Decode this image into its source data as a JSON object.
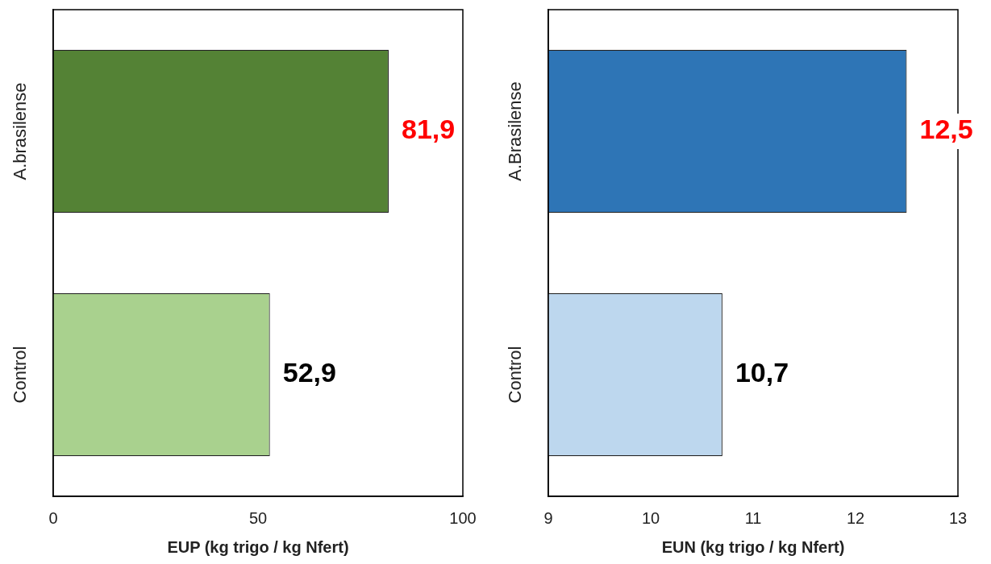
{
  "chart_data": [
    {
      "type": "bar",
      "orientation": "horizontal",
      "categories": [
        "A.brasilense",
        "Control"
      ],
      "values": [
        81.9,
        52.9
      ],
      "colors": [
        "#548235",
        "#a9d18e"
      ],
      "value_labels": [
        "81,9",
        "52,9"
      ],
      "xlabel": "EUP (kg trigo / kg Nfert)",
      "xlim": [
        0,
        100
      ],
      "xticks": [
        0,
        50,
        100
      ],
      "grid": false,
      "legend": false
    },
    {
      "type": "bar",
      "orientation": "horizontal",
      "categories": [
        "A.Brasilense",
        "Control"
      ],
      "values": [
        12.5,
        10.7
      ],
      "colors": [
        "#2e75b6",
        "#bdd7ee"
      ],
      "value_labels": [
        "12,5",
        "10,7"
      ],
      "xlabel": "EUN (kg trigo / kg Nfert)",
      "xlim": [
        9,
        13
      ],
      "xticks": [
        9,
        10,
        11,
        12,
        13
      ],
      "grid": false,
      "legend": false
    }
  ]
}
